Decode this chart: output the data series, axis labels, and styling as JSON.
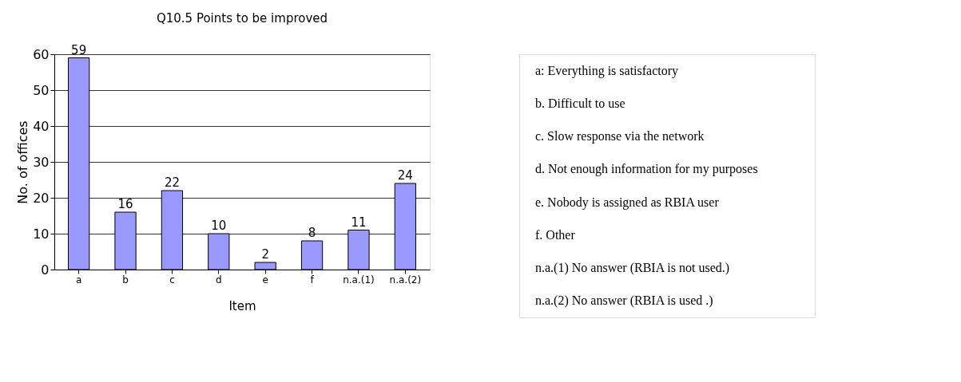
{
  "chart_data": [
    {
      "type": "bar",
      "title": "Q10.5 Points to be improved",
      "xlabel": "Item",
      "ylabel": "No. of offices",
      "categories": [
        "a",
        "b",
        "c",
        "d",
        "e",
        "f",
        "n.a.(1)",
        "n.a.(2)"
      ],
      "values": [
        59,
        16,
        22,
        10,
        2,
        8,
        11,
        24
      ],
      "color": "#9999ff",
      "ylim": [
        0,
        60
      ],
      "yticks": [
        0,
        10,
        20,
        30,
        40,
        50,
        60
      ],
      "grid": "y",
      "data_labels": true
    },
    {
      "type": "other",
      "annotations": [
        "a:   Everything is satisfactory",
        "b.   Difficult to use",
        "c.   Slow response via the network",
        "d.   Not enough information for my purposes",
        "e.   Nobody is assigned as RBIA user",
        "f.   Other",
        "n.a.(1)   No answer (RBIA is not used.)",
        "n.a.(2)   No answer (RBIA is used .)"
      ]
    }
  ]
}
